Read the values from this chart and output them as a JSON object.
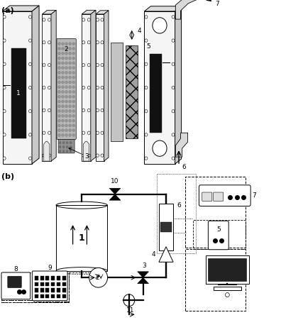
{
  "bg_color": "#ffffff",
  "figsize": [
    3.96,
    4.51
  ],
  "dpi": 100,
  "label_a": "(a)",
  "label_b": "(b)",
  "plate_face": "#f5f5f5",
  "plate_top": "#dcdcdc",
  "plate_side": "#c8c8c8",
  "black_el": "#111111",
  "bed_face": "#b8b8b8",
  "sep_face": "#c0c0c0",
  "mesh_face": "#a0a0a0",
  "pipe_lw": 1.6,
  "thin_lw": 0.7
}
